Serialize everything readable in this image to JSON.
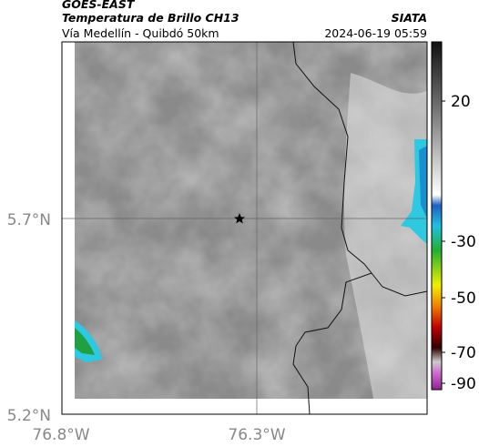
{
  "header": {
    "title": "GOES-EAST",
    "subtitle": "Temperatura de Brillo CH13",
    "source": "SIATA",
    "route": "Vía Medellín - Quibdó 50km",
    "timestamp": "2024-06-19 05:59"
  },
  "axes": {
    "lat_ticks": [
      "5.7°N",
      "5.2°N"
    ],
    "lon_ticks": [
      "76.8°W",
      "76.3°W"
    ]
  },
  "colorbar": {
    "ticks": [
      "20",
      "-30",
      "-50",
      "-70",
      "-90"
    ]
  }
}
